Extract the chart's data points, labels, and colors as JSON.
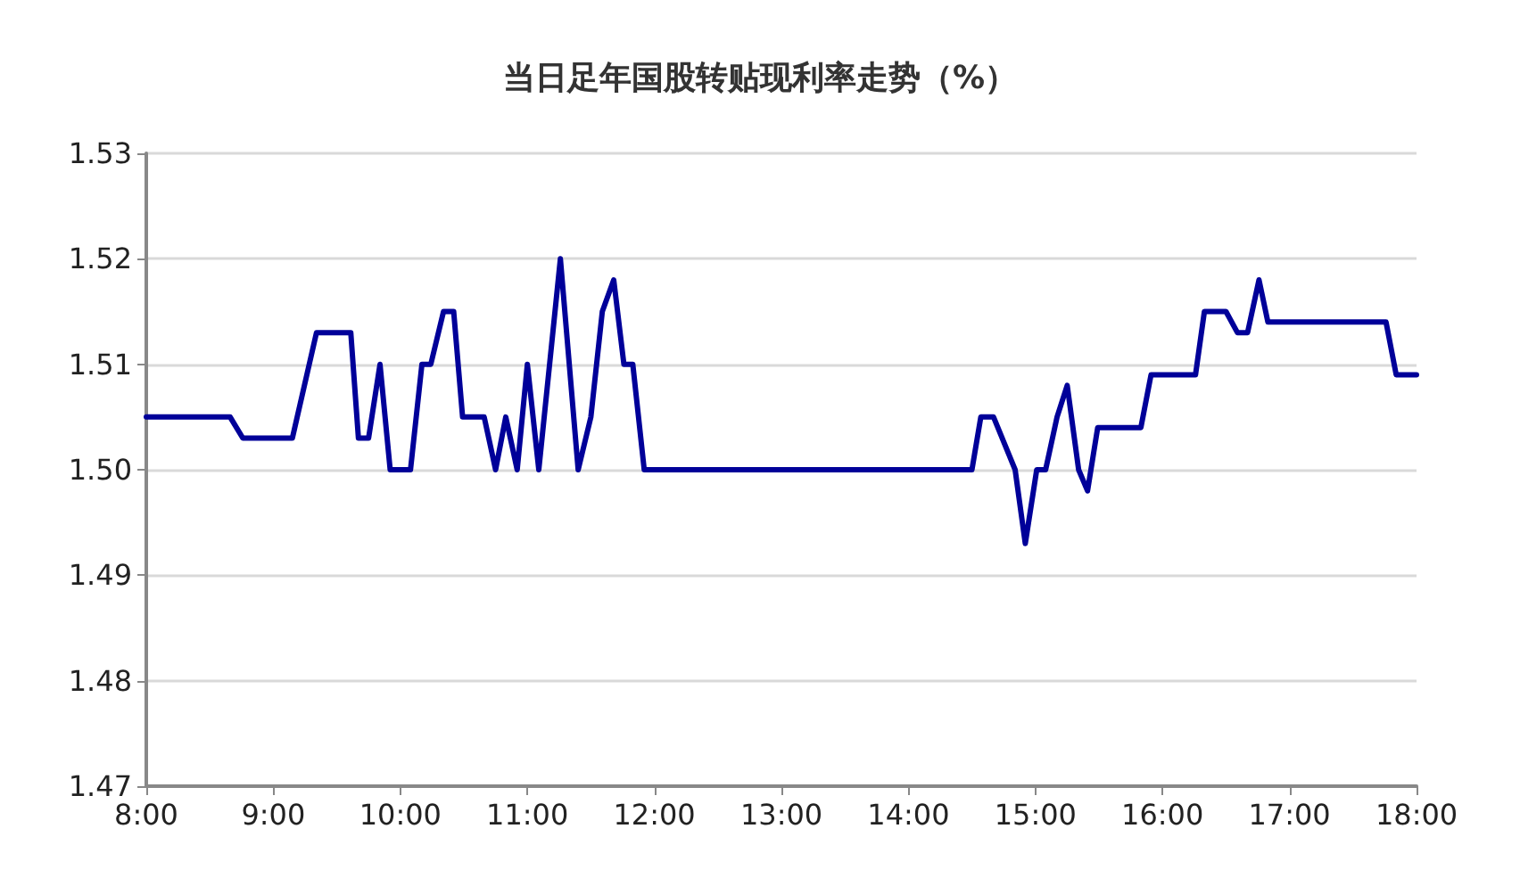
{
  "chart_data": {
    "type": "line",
    "title": "当日足年国股转贴现利率走势（%）",
    "x": [
      8,
      8.66,
      8.76,
      9.15,
      9.34,
      9.61,
      9.67,
      9.75,
      9.84,
      9.92,
      10.08,
      10.17,
      10.24,
      10.34,
      10.42,
      10.49,
      10.66,
      10.75,
      10.83,
      10.92,
      11.0,
      11.09,
      11.26,
      11.4,
      11.5,
      11.59,
      11.68,
      11.76,
      11.83,
      11.92,
      14.5,
      14.57,
      14.67,
      14.84,
      14.92,
      15.01,
      15.08,
      15.17,
      15.25,
      15.34,
      15.41,
      15.49,
      15.83,
      15.91,
      16.26,
      16.33,
      16.5,
      16.59,
      16.67,
      16.76,
      16.83,
      17.76,
      17.84,
      18.0
    ],
    "series": [
      {
        "color": "#000099",
        "values": [
          1.505,
          1.505,
          1.503,
          1.503,
          1.513,
          1.513,
          1.503,
          1.503,
          1.51,
          1.5,
          1.5,
          1.51,
          1.51,
          1.515,
          1.515,
          1.505,
          1.505,
          1.5,
          1.505,
          1.5,
          1.51,
          1.5,
          1.52,
          1.5,
          1.505,
          1.515,
          1.518,
          1.51,
          1.51,
          1.5,
          1.5,
          1.505,
          1.505,
          1.5,
          1.493,
          1.5,
          1.5,
          1.505,
          1.508,
          1.5,
          1.498,
          1.504,
          1.504,
          1.509,
          1.509,
          1.515,
          1.515,
          1.513,
          1.513,
          1.518,
          1.514,
          1.514,
          1.509,
          1.509
        ]
      }
    ],
    "xlim": [
      8,
      18
    ],
    "xticks": [
      {
        "value": 8,
        "label": "8:00"
      },
      {
        "value": 9,
        "label": "9:00"
      },
      {
        "value": 10,
        "label": "10:00"
      },
      {
        "value": 11,
        "label": "11:00"
      },
      {
        "value": 12,
        "label": "12:00"
      },
      {
        "value": 13,
        "label": "13:00"
      },
      {
        "value": 14,
        "label": "14:00"
      },
      {
        "value": 15,
        "label": "15:00"
      },
      {
        "value": 16,
        "label": "16:00"
      },
      {
        "value": 17,
        "label": "17:00"
      },
      {
        "value": 18,
        "label": "18:00"
      }
    ],
    "ylim": [
      1.47,
      1.53
    ],
    "yticks": [
      {
        "value": 1.47,
        "label": "1.47"
      },
      {
        "value": 1.48,
        "label": "1.48"
      },
      {
        "value": 1.49,
        "label": "1.49"
      },
      {
        "value": 1.5,
        "label": "1.50"
      },
      {
        "value": 1.51,
        "label": "1.51"
      },
      {
        "value": 1.52,
        "label": "1.52"
      },
      {
        "value": 1.53,
        "label": "1.53"
      }
    ],
    "grid": "y",
    "marker": "none",
    "line_style": "solid"
  }
}
